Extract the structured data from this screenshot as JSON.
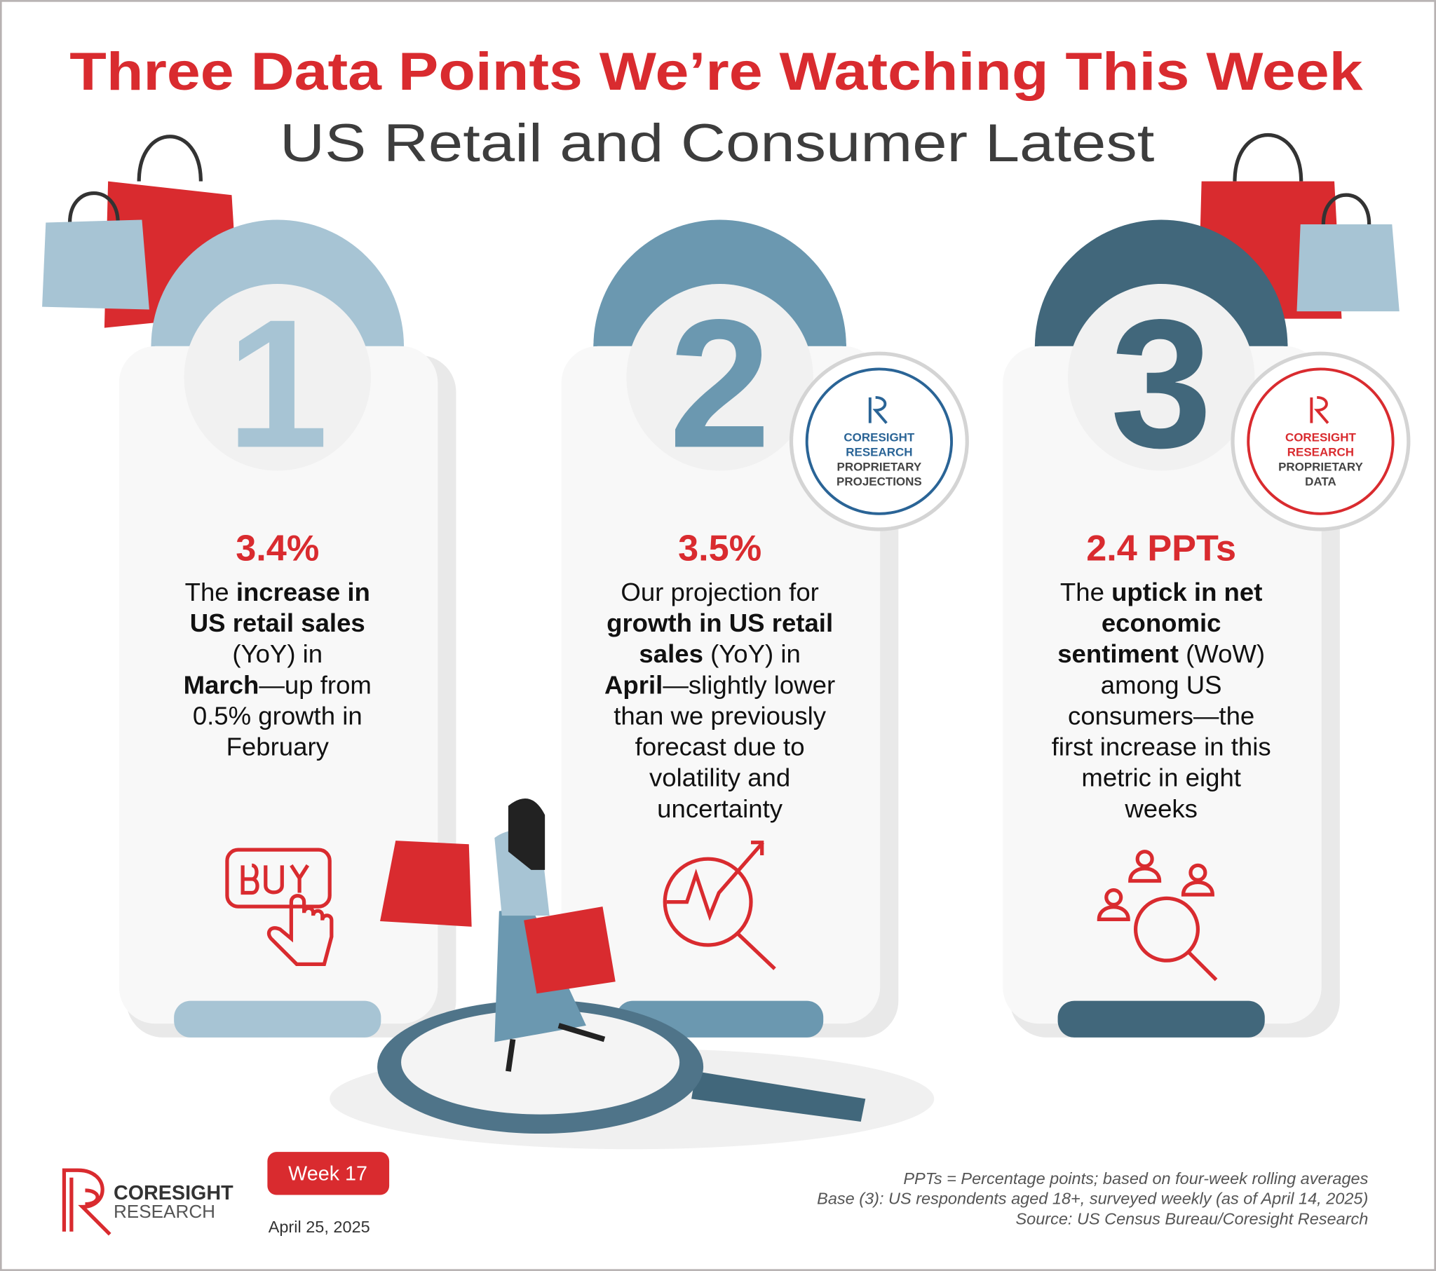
{
  "header": {
    "title": "Three Data Points We’re Watching This Week",
    "subtitle": "US Retail and Consumer Latest"
  },
  "cards": [
    {
      "number": "1",
      "value": "3.4%",
      "lines": [
        [
          {
            "t": "The "
          },
          {
            "t": "increase in",
            "b": true
          }
        ],
        [
          {
            "t": "US retail sales",
            "b": true
          }
        ],
        [
          {
            "t": "(YoY) in"
          }
        ],
        [
          {
            "t": "March",
            "b": true
          },
          {
            "t": "—up from"
          }
        ],
        [
          {
            "t": "0.5% growth in"
          }
        ],
        [
          {
            "t": "February"
          }
        ]
      ]
    },
    {
      "number": "2",
      "value": "3.5%",
      "badge": [
        "CORESIGHT",
        "RESEARCH",
        "PROPRIETARY",
        "PROJECTIONS"
      ],
      "lines": [
        [
          {
            "t": "Our projection for"
          }
        ],
        [
          {
            "t": "growth in US retail",
            "b": true
          }
        ],
        [
          {
            "t": "sales",
            "b": true
          },
          {
            "t": " (YoY) in"
          }
        ],
        [
          {
            "t": "April",
            "b": true
          },
          {
            "t": "—slightly lower"
          }
        ],
        [
          {
            "t": "than we previously"
          }
        ],
        [
          {
            "t": "forecast due to"
          }
        ],
        [
          {
            "t": "volatility and"
          }
        ],
        [
          {
            "t": "uncertainty"
          }
        ]
      ]
    },
    {
      "number": "3",
      "value": "2.4 PPTs",
      "badge": [
        "CORESIGHT",
        "RESEARCH",
        "PROPRIETARY",
        "DATA"
      ],
      "lines": [
        [
          {
            "t": "The "
          },
          {
            "t": "uptick in net",
            "b": true
          }
        ],
        [
          {
            "t": "economic",
            "b": true
          }
        ],
        [
          {
            "t": "sentiment",
            "b": true
          },
          {
            "t": " (WoW)"
          }
        ],
        [
          {
            "t": "among US"
          }
        ],
        [
          {
            "t": "consumers—the"
          }
        ],
        [
          {
            "t": "first increase in this"
          }
        ],
        [
          {
            "t": "metric in eight"
          }
        ],
        [
          {
            "t": "weeks"
          }
        ]
      ]
    }
  ],
  "footer": {
    "logo": [
      "CORESIGHT",
      "RESEARCH"
    ],
    "week": "Week 17",
    "date": "April 25, 2025",
    "notes": [
      "PPTs = Percentage points; based on four-week rolling averages",
      "Base (3): US respondents aged 18+, surveyed weekly (as of April 14, 2025)",
      "Source: US Census Bureau/Coresight Research"
    ]
  }
}
